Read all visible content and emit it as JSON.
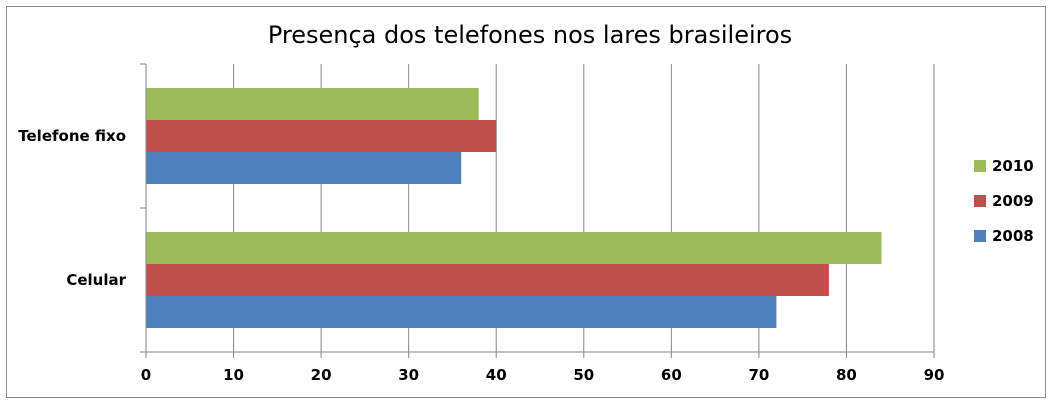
{
  "chart_data": {
    "type": "bar",
    "orientation": "horizontal",
    "title": "Presença dos telefones nos lares brasileiros",
    "categories": [
      "Telefone fixo",
      "Celular"
    ],
    "series": [
      {
        "name": "2010",
        "color": "#9BBB59",
        "values": [
          38,
          84
        ]
      },
      {
        "name": "2009",
        "color": "#C0504D",
        "values": [
          40,
          78
        ]
      },
      {
        "name": "2008",
        "color": "#4F81BD",
        "values": [
          36,
          72
        ]
      }
    ],
    "xlim": [
      0,
      90
    ],
    "xticks": [
      "0",
      "10",
      "20",
      "30",
      "40",
      "50",
      "60",
      "70",
      "80",
      "90"
    ],
    "grid": true,
    "legend_position": "right"
  }
}
